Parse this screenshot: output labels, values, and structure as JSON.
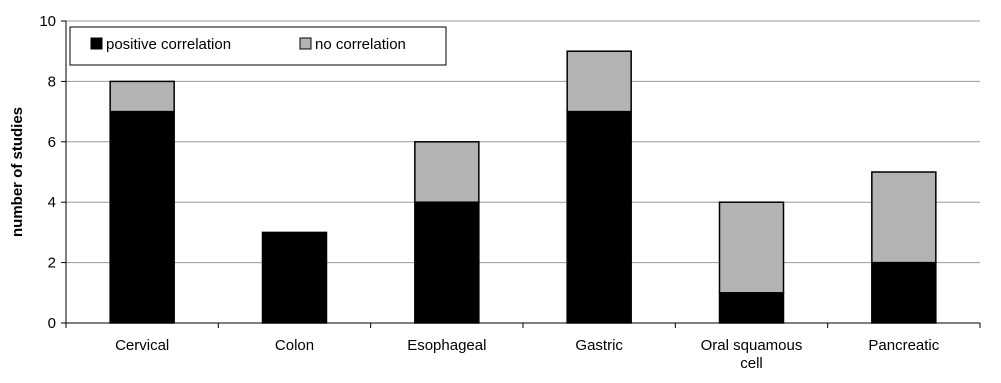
{
  "chart_data": {
    "type": "bar",
    "stacked": true,
    "categories": [
      "Cervical",
      "Colon",
      "Esophageal",
      "Gastric",
      "Oral squamous cell",
      "Pancreatic"
    ],
    "category_lines": [
      [
        "Cervical"
      ],
      [
        "Colon"
      ],
      [
        "Esophageal"
      ],
      [
        "Gastric"
      ],
      [
        "Oral squamous",
        "cell"
      ],
      [
        "Pancreatic"
      ]
    ],
    "series": [
      {
        "name": "positive correlation",
        "values": [
          7,
          3,
          4,
          7,
          1,
          2
        ],
        "color": "#000000"
      },
      {
        "name": "no correlation",
        "values": [
          1,
          0,
          2,
          2,
          3,
          3
        ],
        "color": "#b3b3b3"
      }
    ],
    "title": "",
    "xlabel": "",
    "ylabel": "number of studies",
    "ylim": [
      0,
      10
    ],
    "yticks": [
      0,
      2,
      4,
      6,
      8,
      10
    ],
    "grid": true,
    "legend_position": "top-left"
  }
}
